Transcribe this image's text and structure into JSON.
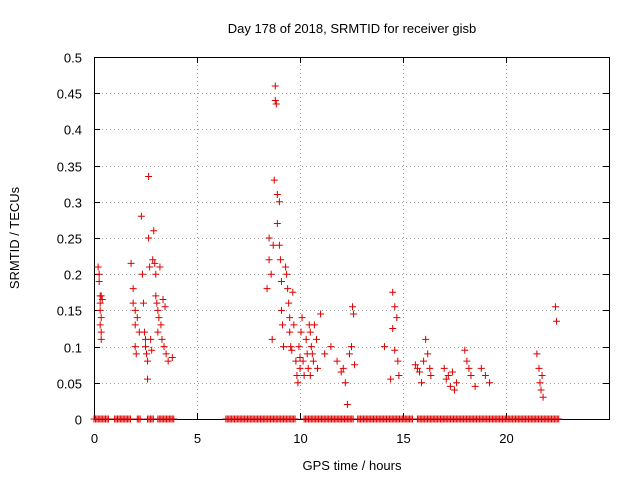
{
  "chart_data": {
    "type": "scatter",
    "title": "Day 178 of 2018, SRMTID for receiver gisb",
    "xlabel": "GPS time / hours",
    "ylabel": "SRMTID / TECUs",
    "xlim": [
      0,
      25
    ],
    "ylim": [
      0,
      0.5
    ],
    "xticks": [
      0,
      5,
      10,
      15,
      20
    ],
    "yticks": [
      0,
      0.05,
      0.1,
      0.15,
      0.2,
      0.25,
      0.3,
      0.35,
      0.4,
      0.45,
      0.5
    ],
    "grid": true,
    "marker": "+",
    "color": "#dd0000",
    "series": [
      {
        "values": [
          [
            0.2,
            0.21
          ],
          [
            0.25,
            0.2
          ],
          [
            0.25,
            0.19
          ],
          [
            0.3,
            0.17
          ],
          [
            0.3,
            0.16
          ],
          [
            0.3,
            0.15
          ],
          [
            0.35,
            0.14
          ],
          [
            0.3,
            0.13
          ],
          [
            0.35,
            0.12
          ],
          [
            0.35,
            0.11
          ],
          [
            0.4,
            0.165
          ],
          [
            0.35,
            0.17
          ],
          [
            1.8,
            0.215
          ],
          [
            1.9,
            0.18
          ],
          [
            1.9,
            0.16
          ],
          [
            2.0,
            0.15
          ],
          [
            2.0,
            0.13
          ],
          [
            2.0,
            0.1
          ],
          [
            2.05,
            0.09
          ],
          [
            2.1,
            0.14
          ],
          [
            2.2,
            0.12
          ],
          [
            2.3,
            0.28
          ],
          [
            2.35,
            0.2
          ],
          [
            2.4,
            0.16
          ],
          [
            2.45,
            0.12
          ],
          [
            2.5,
            0.11
          ],
          [
            2.5,
            0.1
          ],
          [
            2.55,
            0.09
          ],
          [
            2.6,
            0.08
          ],
          [
            2.6,
            0.055
          ],
          [
            2.65,
            0.25
          ],
          [
            2.65,
            0.335
          ],
          [
            2.7,
            0.21
          ],
          [
            2.75,
            0.11
          ],
          [
            2.8,
            0.095
          ],
          [
            2.85,
            0.22
          ],
          [
            2.9,
            0.26
          ],
          [
            2.95,
            0.215
          ],
          [
            3.0,
            0.2
          ],
          [
            3.0,
            0.17
          ],
          [
            3.05,
            0.16
          ],
          [
            3.1,
            0.15
          ],
          [
            3.1,
            0.12
          ],
          [
            3.15,
            0.14
          ],
          [
            3.2,
            0.21
          ],
          [
            3.25,
            0.13
          ],
          [
            3.3,
            0.11
          ],
          [
            3.35,
            0.165
          ],
          [
            3.4,
            0.1
          ],
          [
            3.45,
            0.155
          ],
          [
            3.5,
            0.09
          ],
          [
            3.6,
            0.08
          ],
          [
            3.8,
            0.085
          ],
          [
            8.4,
            0.18
          ],
          [
            8.5,
            0.25
          ],
          [
            8.5,
            0.22
          ],
          [
            8.6,
            0.2
          ],
          [
            8.65,
            0.11
          ],
          [
            8.7,
            0.24
          ],
          [
            8.75,
            0.33
          ],
          [
            8.8,
            0.46
          ],
          [
            8.8,
            0.44
          ],
          [
            8.85,
            0.435
          ],
          [
            8.9,
            0.31
          ],
          [
            8.9,
            0.27
          ],
          [
            9.0,
            0.3
          ],
          [
            9.0,
            0.24
          ],
          [
            9.05,
            0.22
          ],
          [
            9.1,
            0.19
          ],
          [
            9.1,
            0.15
          ],
          [
            9.15,
            0.13
          ],
          [
            9.2,
            0.1
          ],
          [
            9.3,
            0.21
          ],
          [
            9.35,
            0.2
          ],
          [
            9.4,
            0.18
          ],
          [
            9.45,
            0.16
          ],
          [
            9.5,
            0.14
          ],
          [
            9.5,
            0.12
          ],
          [
            9.55,
            0.1
          ],
          [
            9.6,
            0.095
          ],
          [
            9.65,
            0.175
          ],
          [
            9.7,
            0.13
          ],
          [
            9.8,
            0.08
          ],
          [
            9.85,
            0.06
          ],
          [
            9.9,
            0.05
          ],
          [
            9.95,
            0.1
          ],
          [
            10.0,
            0.085
          ],
          [
            10.0,
            0.07
          ],
          [
            10.05,
            0.12
          ],
          [
            10.1,
            0.14
          ],
          [
            10.15,
            0.08
          ],
          [
            10.2,
            0.06
          ],
          [
            10.3,
            0.11
          ],
          [
            10.35,
            0.09
          ],
          [
            10.4,
            0.07
          ],
          [
            10.45,
            0.13
          ],
          [
            10.5,
            0.12
          ],
          [
            10.5,
            0.06
          ],
          [
            10.55,
            0.1
          ],
          [
            10.6,
            0.09
          ],
          [
            10.65,
            0.08
          ],
          [
            10.7,
            0.13
          ],
          [
            10.8,
            0.11
          ],
          [
            10.85,
            0.07
          ],
          [
            11.0,
            0.145
          ],
          [
            11.2,
            0.09
          ],
          [
            11.5,
            0.1
          ],
          [
            11.8,
            0.08
          ],
          [
            12.0,
            0.065
          ],
          [
            12.1,
            0.07
          ],
          [
            12.2,
            0.05
          ],
          [
            12.3,
            0.02
          ],
          [
            12.4,
            0.09
          ],
          [
            12.5,
            0.1
          ],
          [
            12.55,
            0.155
          ],
          [
            12.6,
            0.145
          ],
          [
            12.65,
            0.075
          ],
          [
            14.1,
            0.1
          ],
          [
            14.4,
            0.055
          ],
          [
            14.5,
            0.175
          ],
          [
            14.5,
            0.125
          ],
          [
            14.6,
            0.155
          ],
          [
            14.6,
            0.095
          ],
          [
            14.7,
            0.14
          ],
          [
            14.75,
            0.08
          ],
          [
            14.8,
            0.06
          ],
          [
            15.6,
            0.075
          ],
          [
            15.7,
            0.07
          ],
          [
            15.8,
            0.065
          ],
          [
            15.9,
            0.05
          ],
          [
            16.0,
            0.08
          ],
          [
            16.1,
            0.11
          ],
          [
            16.2,
            0.09
          ],
          [
            16.3,
            0.07
          ],
          [
            16.35,
            0.06
          ],
          [
            17.0,
            0.07
          ],
          [
            17.1,
            0.055
          ],
          [
            17.2,
            0.06
          ],
          [
            17.3,
            0.045
          ],
          [
            17.4,
            0.065
          ],
          [
            17.5,
            0.04
          ],
          [
            17.6,
            0.05
          ],
          [
            18.0,
            0.095
          ],
          [
            18.1,
            0.08
          ],
          [
            18.2,
            0.07
          ],
          [
            18.3,
            0.06
          ],
          [
            18.5,
            0.045
          ],
          [
            18.8,
            0.07
          ],
          [
            19.0,
            0.06
          ],
          [
            19.2,
            0.05
          ],
          [
            21.5,
            0.09
          ],
          [
            21.6,
            0.07
          ],
          [
            21.65,
            0.05
          ],
          [
            21.7,
            0.04
          ],
          [
            21.75,
            0.06
          ],
          [
            21.8,
            0.03
          ],
          [
            22.4,
            0.155
          ],
          [
            22.45,
            0.135
          ]
        ]
      },
      {
        "zero_segments": [
          [
            0.0,
            0.7
          ],
          [
            1.0,
            1.8
          ],
          [
            2.1,
            2.3
          ],
          [
            2.6,
            2.9
          ],
          [
            3.1,
            3.9
          ],
          [
            6.4,
            9.8
          ],
          [
            10.2,
            12.6
          ],
          [
            12.8,
            15.5
          ],
          [
            15.7,
            22.6
          ]
        ]
      }
    ]
  }
}
